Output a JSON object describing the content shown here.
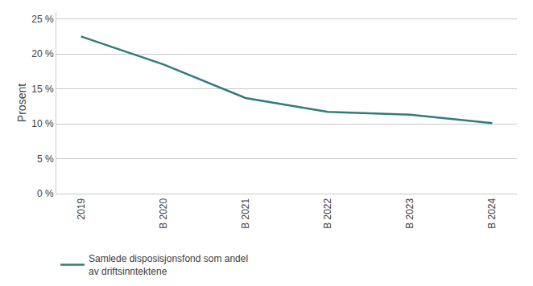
{
  "chart_data": {
    "type": "line",
    "categories": [
      "2019",
      "B 2020",
      "B 2021",
      "B 2022",
      "B 2023",
      "B 2024"
    ],
    "series": [
      {
        "name": "Samlede disposisjonsfond som andel\nav driftsinntektene",
        "color": "#2e7d7a",
        "values": [
          22.5,
          18.5,
          13.7,
          11.7,
          11.3,
          10.1
        ]
      }
    ],
    "ylabel": "Prosent",
    "ylim": [
      0,
      26
    ],
    "yticks": [
      {
        "value": 0,
        "label": "0 %"
      },
      {
        "value": 5,
        "label": "5 %"
      },
      {
        "value": 10,
        "label": "10 %"
      },
      {
        "value": 15,
        "label": "15 %"
      },
      {
        "value": 20,
        "label": "20 %"
      },
      {
        "value": 25,
        "label": "25 %"
      }
    ],
    "grid": true,
    "legend": "lower left"
  }
}
